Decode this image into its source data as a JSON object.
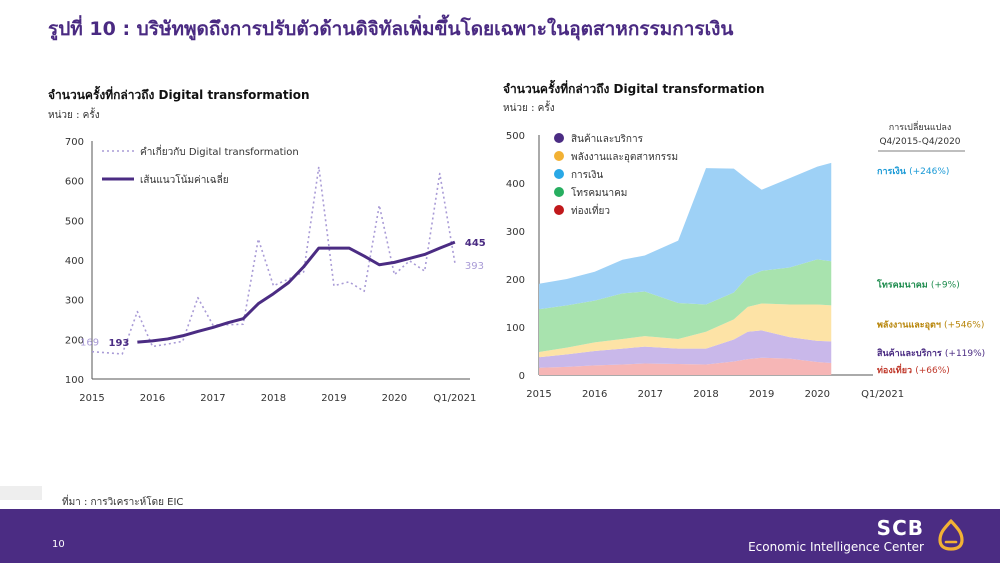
{
  "page": {
    "title": "รูปที่ 10 : บริษัทพูดถึงการปรับตัวด้านดิจิทัลเพิ่มขึ้นโดยเฉพาะในอุตสาหกรรมการเงิน",
    "source": "ที่มา : การวิเคราะห์โดย EIC",
    "page_number": "10",
    "brand_name": "SCB",
    "brand_sub": "Economic Intelligence Center",
    "colors": {
      "primary": "#4b2c83",
      "accent": "#f2b134"
    }
  },
  "chart_data": [
    {
      "type": "line",
      "title": "จำนวนครั้งที่กล่าวถึง Digital transformation",
      "unit_label": "หน่วย : ครั้ง",
      "ylim": [
        100,
        700
      ],
      "yticks": [
        "100",
        "200",
        "300",
        "400",
        "500",
        "600",
        "700"
      ],
      "xlim": [
        2015,
        2021.25
      ],
      "x_tick_labels": [
        {
          "x": 2015,
          "label": "2015"
        },
        {
          "x": 2016,
          "label": "2016"
        },
        {
          "x": 2017,
          "label": "2017"
        },
        {
          "x": 2018,
          "label": "2018"
        },
        {
          "x": 2019,
          "label": "2019"
        },
        {
          "x": 2020,
          "label": "2020"
        },
        {
          "x": 2021,
          "label": "Q1/2021"
        }
      ],
      "grid": false,
      "legend_position": "top-left",
      "series": [
        {
          "name": "คำเกี่ยวกับ Digital transformation",
          "style": "dotted",
          "color": "#a99bd6",
          "x": [
            2015,
            2015.25,
            2015.5,
            2015.75,
            2016,
            2016.25,
            2016.5,
            2016.75,
            2017,
            2017.25,
            2017.5,
            2017.75,
            2018,
            2018.25,
            2018.5,
            2018.75,
            2019,
            2019.25,
            2019.5,
            2019.75,
            2020,
            2020.25,
            2020.5,
            2020.75,
            2021
          ],
          "values": [
            169,
            166,
            163,
            270,
            182,
            188,
            195,
            305,
            236,
            237,
            238,
            453,
            335,
            352,
            370,
            635,
            335,
            345,
            321,
            538,
            363,
            398,
            372,
            618,
            393
          ]
        },
        {
          "name": "เส้นแนวโน้มค่าเฉลี่ย",
          "style": "solid",
          "color": "#4b2c83",
          "x": [
            2015.75,
            2016,
            2016.25,
            2016.5,
            2016.75,
            2017,
            2017.25,
            2017.5,
            2017.75,
            2018,
            2018.25,
            2018.5,
            2018.75,
            2019,
            2019.25,
            2019.5,
            2019.75,
            2020,
            2020.25,
            2020.5,
            2020.75,
            2021
          ],
          "values": [
            193,
            196,
            201,
            209,
            220,
            230,
            242,
            252,
            290,
            315,
            343,
            383,
            430,
            430,
            430,
            410,
            388,
            394,
            404,
            414,
            430,
            445
          ]
        }
      ],
      "annotations": [
        {
          "label": "169",
          "x": 2015,
          "value": 169,
          "color": "#a99bd6"
        },
        {
          "label": "193",
          "x": 2015.75,
          "value": 193,
          "color": "#4b2c83"
        },
        {
          "label": "445",
          "x": 2021,
          "value": 445,
          "color": "#4b2c83"
        },
        {
          "label": "393",
          "x": 2021,
          "value": 393,
          "color": "#a99bd6"
        }
      ]
    },
    {
      "type": "area",
      "stacked": true,
      "title": "จำนวนครั้งที่กล่าวถึง Digital transformation",
      "unit_label": "หน่วย : ครั้ง",
      "ylim": [
        0,
        500
      ],
      "yticks": [
        "0",
        "100",
        "200",
        "300",
        "400",
        "500"
      ],
      "xlim": [
        2015,
        2021
      ],
      "x_tick_labels": [
        {
          "x": 2015,
          "label": "2015"
        },
        {
          "x": 2016,
          "label": "2016"
        },
        {
          "x": 2017,
          "label": "2017"
        },
        {
          "x": 2018,
          "label": "2018"
        },
        {
          "x": 2019,
          "label": "2019"
        },
        {
          "x": 2020,
          "label": "2020"
        },
        {
          "x": 2020.75,
          "label": "Q1/2021"
        }
      ],
      "grid": false,
      "legend_position": "top-left",
      "change_header": [
        "การเปลี่ยนแปลง",
        "Q4/2015-Q4/2020"
      ],
      "x": [
        2015,
        2015.5,
        2016,
        2016.5,
        2016.9,
        2017.5,
        2018,
        2018.5,
        2018.75,
        2019,
        2019.5,
        2020,
        2020.25
      ],
      "series": [
        {
          "name": "ท่องเที่ยว",
          "color": "#f6b6b6",
          "change": "(+66%)",
          "label_color": "#c0392b",
          "values": [
            15,
            17,
            20,
            22,
            24,
            23,
            22,
            28,
            33,
            36,
            34,
            27,
            25
          ]
        },
        {
          "name": "สินค้าและบริการ",
          "color": "#c9b8ea",
          "change": "(+119%)",
          "label_color": "#4b2c83",
          "values": [
            22,
            26,
            30,
            33,
            35,
            32,
            33,
            46,
            57,
            57,
            45,
            44,
            45
          ]
        },
        {
          "name": "พลังงานและอุตสาหกรรม",
          "color": "#fde3a6",
          "change": "(+546%)",
          "label_color": "#b8860b",
          "values": [
            11,
            14,
            18,
            20,
            22,
            20,
            35,
            42,
            52,
            56,
            68,
            76,
            75
          ]
        },
        {
          "name": "โทรคมนาคม",
          "color": "#a8e3ae",
          "change": "(+9%)",
          "label_color": "#1e8c4e",
          "values": [
            89,
            88,
            87,
            95,
            93,
            75,
            57,
            56,
            63,
            68,
            77,
            94,
            92
          ]
        },
        {
          "name": "การเงิน",
          "color": "#9ed1f6",
          "change": "(+246%)",
          "label_color": "#1b9ad6",
          "values": [
            53,
            55,
            60,
            70,
            75,
            130,
            284,
            258,
            202,
            169,
            186,
            193,
            205
          ]
        }
      ],
      "legend_order": [
        "สินค้าและบริการ",
        "พลังงานและอุตสาหกรรม",
        "การเงิน",
        "โทรคมนาคม",
        "ท่องเที่ยว"
      ],
      "legend_dot_colors": {
        "สินค้าและบริการ": "#4b2c83",
        "พลังงานและอุตสาหกรรม": "#f2b134",
        "การเงิน": "#29a8e6",
        "โทรคมนาคม": "#27ae60",
        "ท่องเที่ยว": "#c0181b"
      },
      "end_labels": [
        {
          "name": "การเงิน",
          "display": "การเงิน"
        },
        {
          "name": "โทรคมนาคม",
          "display": "โทรคมนาคม"
        },
        {
          "name": "พลังงานและอุตสาหกรรม",
          "display": "พลังงานและอุตฯ"
        },
        {
          "name": "สินค้าและบริการ",
          "display": "สินค้าและบริการ"
        },
        {
          "name": "ท่องเที่ยว",
          "display": "ท่องเที่ยว"
        }
      ]
    }
  ]
}
